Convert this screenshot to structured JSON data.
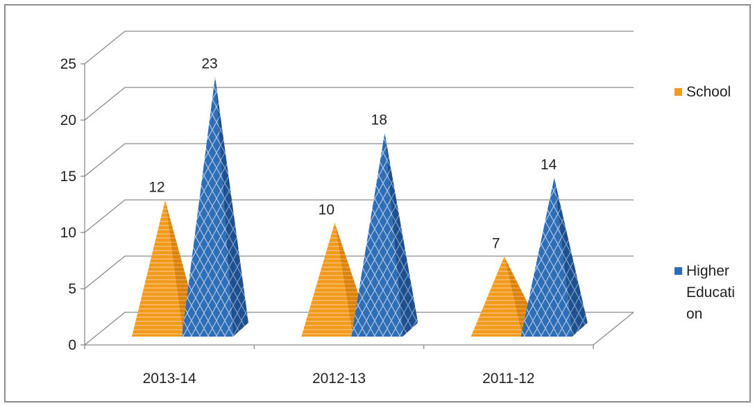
{
  "chart_data": {
    "type": "bar",
    "subtype": "3d-pyramid",
    "categories": [
      "2013-14",
      "2012-13",
      "2011-12"
    ],
    "series": [
      {
        "name": "School",
        "values": [
          12,
          10,
          7
        ],
        "color": "#f29a1c"
      },
      {
        "name": "Higher Education",
        "values": [
          23,
          18,
          14
        ],
        "color": "#2f6db5"
      }
    ],
    "title": "",
    "xlabel": "",
    "ylabel": "",
    "ylim": [
      0,
      25
    ],
    "yticks": [
      0,
      5,
      10,
      15,
      20,
      25
    ],
    "grid": true,
    "legend": {
      "position": "right",
      "entries": [
        {
          "label": "School",
          "color": "#f29a1c"
        },
        {
          "label": "Higher Educati on",
          "color": "#2f6db5"
        }
      ]
    },
    "data_labels": true
  }
}
